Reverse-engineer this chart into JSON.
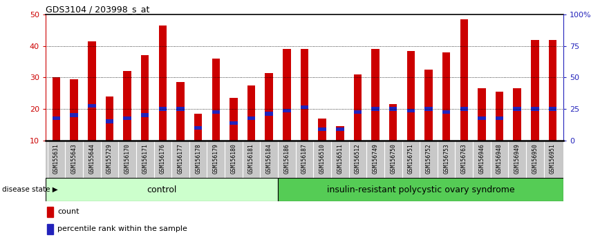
{
  "title": "GDS3104 / 203998_s_at",
  "samples": [
    "GSM155631",
    "GSM155643",
    "GSM155644",
    "GSM155729",
    "GSM156170",
    "GSM156171",
    "GSM156176",
    "GSM156177",
    "GSM156178",
    "GSM156179",
    "GSM156180",
    "GSM156181",
    "GSM156184",
    "GSM156186",
    "GSM156187",
    "GSM156510",
    "GSM156511",
    "GSM156512",
    "GSM156749",
    "GSM156750",
    "GSM156751",
    "GSM156752",
    "GSM156753",
    "GSM156763",
    "GSM156946",
    "GSM156948",
    "GSM156949",
    "GSM156950",
    "GSM156951"
  ],
  "counts": [
    30,
    29.5,
    41.5,
    24,
    32,
    37,
    46.5,
    28.5,
    18.5,
    36,
    23.5,
    27.5,
    31.5,
    39,
    39,
    17,
    14.5,
    31,
    39,
    21.5,
    38.5,
    32.5,
    38,
    48.5,
    26.5,
    25.5,
    26.5,
    42,
    42
  ],
  "percentile_ranks": [
    17,
    18,
    21,
    16,
    17,
    18,
    20,
    20,
    14,
    19,
    15.5,
    17,
    18.5,
    19.5,
    20.5,
    13.5,
    13.5,
    19,
    20,
    20,
    19.5,
    20,
    19,
    20,
    17,
    17,
    20,
    20,
    20
  ],
  "percentile_bar_height": 1.2,
  "bar_color": "#cc0000",
  "percentile_color": "#2222bb",
  "control_count": 13,
  "disease_count": 16,
  "control_label": "control",
  "disease_label": "insulin-resistant polycystic ovary syndrome",
  "control_bg": "#ccffcc",
  "disease_bg": "#55cc55",
  "ylim": [
    10,
    50
  ],
  "yticks_left": [
    10,
    20,
    30,
    40,
    50
  ],
  "yticks_right_vals": [
    10,
    20,
    30,
    40,
    50
  ],
  "yticks_right_labels": [
    "0",
    "25",
    "50",
    "75",
    "100%"
  ],
  "ylabel_left_color": "#cc0000",
  "ylabel_right_color": "#2222bb",
  "tick_area_bg": "#c8c8c8",
  "bar_width": 0.45
}
